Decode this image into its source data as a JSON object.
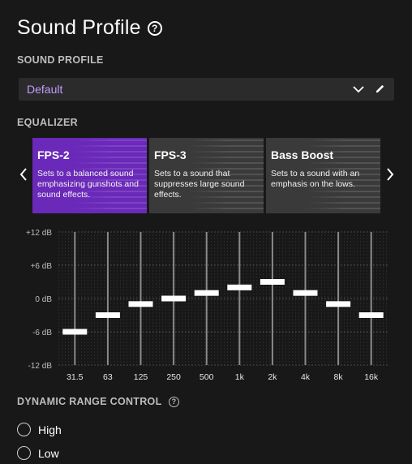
{
  "page": {
    "title": "Sound Profile"
  },
  "sound_profile": {
    "label": "SOUND PROFILE",
    "selected": "Default"
  },
  "equalizer": {
    "label": "EQUALIZER",
    "presets": [
      {
        "title": "FPS-2",
        "description": "Sets to a balanced sound emphasizing gunshots and sound effects.",
        "selected": true
      },
      {
        "title": "FPS-3",
        "description": "Sets to a sound that suppresses large sound effects.",
        "selected": false
      },
      {
        "title": "Bass Boost",
        "description": "Sets to a sound with an emphasis on the lows.",
        "selected": false
      }
    ],
    "y_ticks": [
      "+12 dB",
      "+6 dB",
      "0 dB",
      "-6 dB",
      "-12 dB"
    ],
    "y_range": [
      -12,
      12
    ],
    "bands": [
      "31.5",
      "63",
      "125",
      "250",
      "500",
      "1k",
      "2k",
      "4k",
      "8k",
      "16k"
    ],
    "gains_db": [
      -6,
      -3,
      -1,
      0,
      1,
      2,
      3,
      1,
      -1,
      -3
    ]
  },
  "drc": {
    "label": "DYNAMIC RANGE CONTROL",
    "options": [
      "High",
      "Low"
    ]
  },
  "colors": {
    "accent": "#6a29b9",
    "accent_text": "#c59bff",
    "background": "#181818",
    "card": "#3a3a3a",
    "control": "#2b2b2b"
  }
}
